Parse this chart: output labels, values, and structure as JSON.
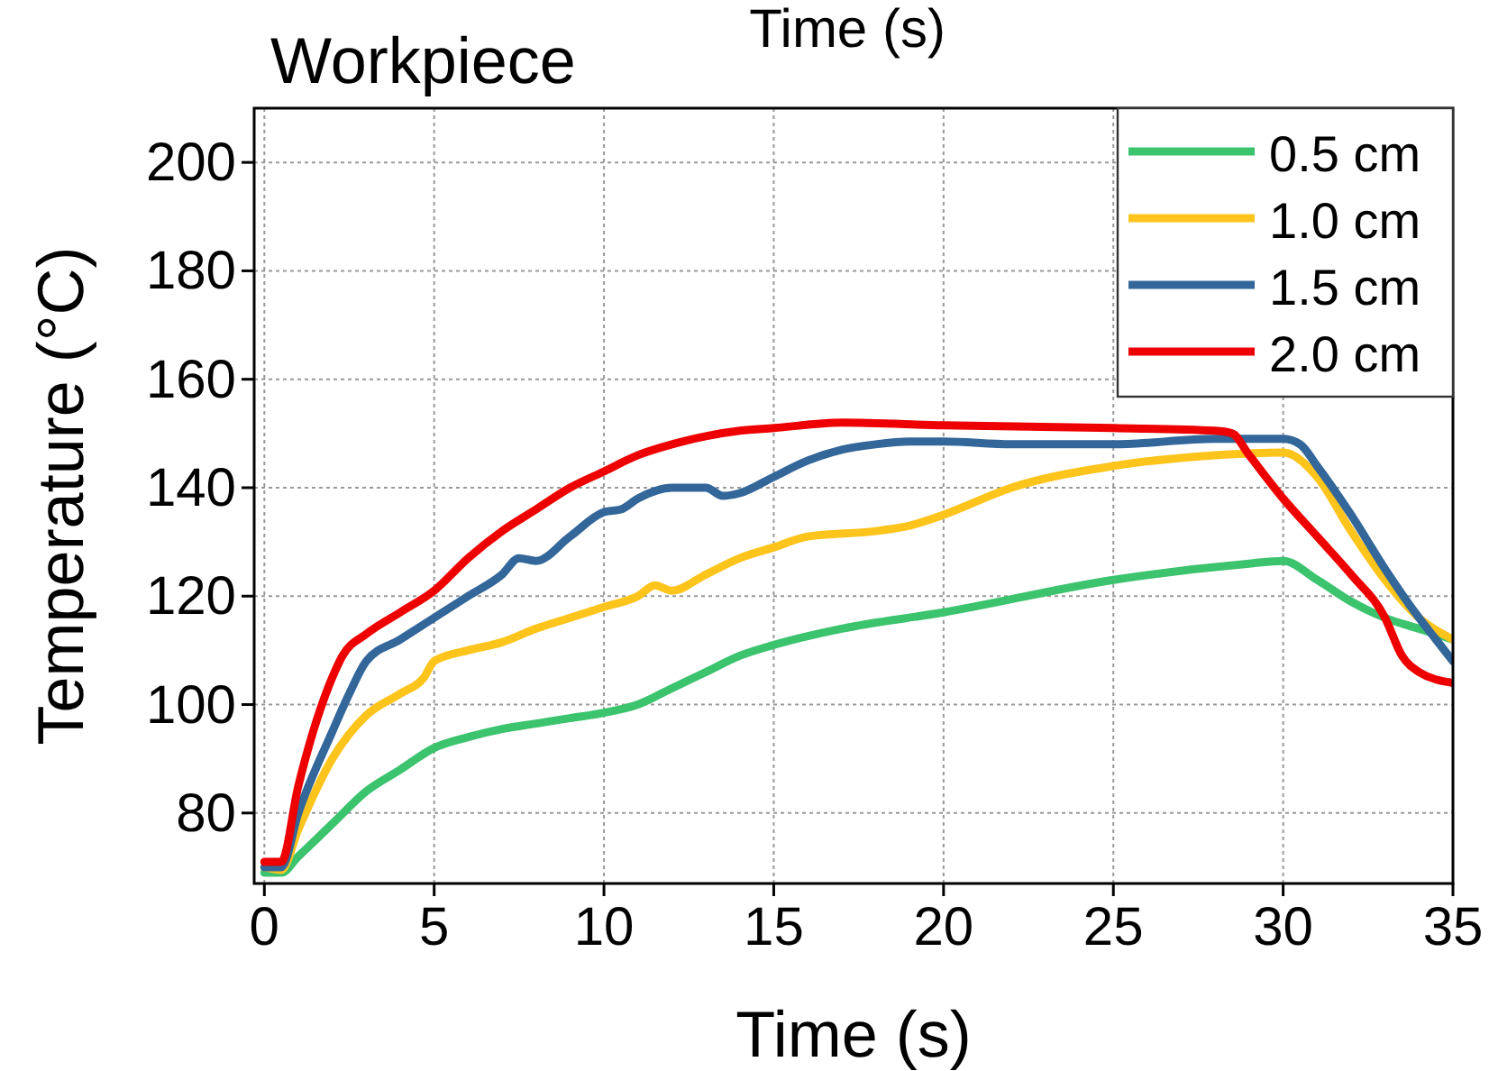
{
  "chart_data": {
    "type": "line",
    "title": "Workpiece",
    "xlabel": "Time (s)",
    "ylabel": "Temperature (°C)",
    "annotations": [
      "Time (s)"
    ],
    "xlim": [
      -0.3,
      35
    ],
    "xticks": [
      0,
      5,
      10,
      15,
      20,
      25,
      30,
      35
    ],
    "ylim": [
      67,
      210
    ],
    "yticks": [
      80,
      100,
      120,
      140,
      160,
      180,
      200
    ],
    "grid": true,
    "legend": "top right",
    "line_style": "solid",
    "series": [
      {
        "name": "0.5 cm",
        "color": "#3cc36e",
        "x": [
          0,
          0.5,
          1,
          2,
          3,
          4,
          5,
          6,
          7,
          8,
          9,
          10,
          11,
          12,
          13,
          14,
          15,
          17,
          20,
          25,
          29,
          30,
          31,
          32,
          33,
          34,
          35
        ],
        "values": [
          69,
          69,
          72,
          78,
          84,
          88,
          92,
          94,
          95.5,
          96.5,
          97.5,
          98.5,
          100,
          103,
          106,
          109,
          111,
          114,
          117,
          123,
          126,
          126.5,
          123,
          119,
          116,
          114,
          112
        ]
      },
      {
        "name": "1.0 cm",
        "color": "#fdc41c",
        "x": [
          0,
          0.5,
          1,
          2,
          3,
          4,
          4.7,
          5,
          6,
          7,
          8,
          9,
          10,
          11,
          11.5,
          12,
          13,
          14,
          15,
          16,
          18,
          19,
          20,
          22,
          25,
          28,
          30,
          31,
          32,
          33,
          34,
          35
        ],
        "values": [
          70,
          69.5,
          77,
          90,
          98,
          102,
          105,
          108,
          110,
          111.5,
          114,
          116,
          118,
          120,
          122,
          121,
          124,
          127,
          129,
          131,
          132,
          133,
          135,
          140,
          144,
          146,
          146.5,
          142,
          132,
          123,
          116,
          112
        ]
      },
      {
        "name": "1.5 cm",
        "color": "#336699",
        "x": [
          0,
          0.5,
          1,
          2,
          2.5,
          3,
          4,
          5,
          6,
          7,
          7.5,
          8,
          9,
          10,
          10.5,
          11,
          12,
          13,
          13.5,
          14,
          15,
          16,
          17,
          18,
          19,
          20,
          22,
          25,
          28,
          30,
          30.5,
          31,
          32,
          33,
          34,
          34.5,
          35
        ],
        "values": [
          70,
          70,
          80,
          95,
          102,
          108,
          112,
          116,
          120,
          124,
          127,
          126.5,
          131,
          135.5,
          136,
          138,
          140,
          140,
          138.5,
          139,
          142,
          145,
          147,
          148,
          148.5,
          148.5,
          148,
          148,
          149,
          149,
          148,
          144,
          135,
          125,
          116,
          112,
          108
        ]
      },
      {
        "name": "2.0 cm",
        "color": "#ee0000",
        "x": [
          0,
          0.5,
          1,
          2,
          2.3,
          3,
          4,
          5,
          6,
          7,
          8,
          9,
          10,
          11,
          12,
          13,
          14,
          15,
          17,
          20,
          25,
          28,
          28.5,
          29,
          30,
          31,
          32,
          33,
          33.5,
          34,
          35
        ],
        "values": [
          71,
          71,
          85,
          105,
          109,
          113,
          117,
          121,
          127,
          132,
          136,
          140,
          143,
          146,
          148,
          149.5,
          150.5,
          151,
          152,
          151.5,
          151,
          150.5,
          150,
          146,
          138,
          131,
          124,
          116,
          109,
          106,
          104
        ]
      }
    ]
  }
}
